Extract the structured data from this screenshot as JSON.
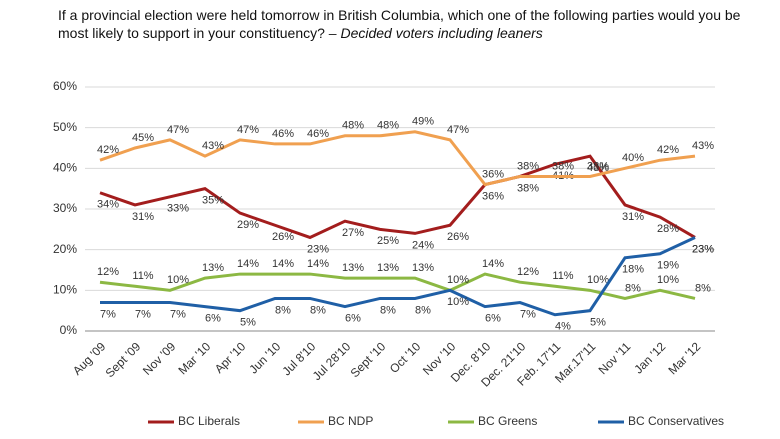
{
  "chart_data": {
    "type": "line",
    "title": "If a provincial election were held tomorrow in British Columbia, which one of the following parties would you be most likely to support in your constituency?",
    "subtitle": "– Decided voters including leaners",
    "categories": [
      "Aug '09",
      "Sept '09",
      "Nov '09",
      "Mar '10",
      "Apr '10",
      "Jun '10",
      "Jul 8'10",
      "Jul 28'10",
      "Sept '10",
      "Oct '10",
      "Nov '10",
      "Dec. 8'10",
      "Dec. 21'10",
      "Feb. 17'11",
      "Mar.17'11",
      "Nov '11",
      "Jan '12",
      "Mar '12"
    ],
    "series": [
      {
        "name": "BC Liberals",
        "color": "#a31d1d",
        "values": [
          34,
          31,
          33,
          35,
          29,
          26,
          23,
          27,
          25,
          24,
          26,
          36,
          38,
          41,
          43,
          31,
          28,
          23
        ],
        "value_labels": [
          "34%",
          "31%",
          "33%",
          "35%",
          "29%",
          "26%",
          "23%",
          "27%",
          "25%",
          "24%",
          "26%",
          "36%",
          "38%",
          "41%",
          "43%",
          "31%",
          "28%",
          "23%"
        ]
      },
      {
        "name": "BC NDP",
        "color": "#f0a050",
        "values": [
          42,
          45,
          47,
          43,
          47,
          46,
          46,
          48,
          48,
          49,
          47,
          36,
          38,
          38,
          38,
          40,
          42,
          43
        ],
        "value_labels": [
          "42%",
          "45%",
          "47%",
          "43%",
          "47%",
          "46%",
          "46%",
          "48%",
          "48%",
          "49%",
          "47%",
          "36%",
          "38%",
          "38%",
          "38%",
          "40%",
          "42%",
          "43%"
        ]
      },
      {
        "name": "BC Greens",
        "color": "#8cb843",
        "values": [
          12,
          11,
          10,
          13,
          14,
          14,
          14,
          13,
          13,
          13,
          10,
          14,
          12,
          11,
          10,
          8,
          10,
          8
        ],
        "value_labels": [
          "12%",
          "11%",
          "10%",
          "13%",
          "14%",
          "14%",
          "14%",
          "13%",
          "13%",
          "13%",
          "10%",
          "14%",
          "12%",
          "11%",
          "10%",
          "8%",
          "10%",
          "8%"
        ]
      },
      {
        "name": "BC Conservatives",
        "color": "#1f5fa6",
        "values": [
          7,
          7,
          7,
          6,
          5,
          8,
          8,
          6,
          8,
          8,
          10,
          6,
          7,
          4,
          5,
          18,
          19,
          23
        ],
        "value_labels": [
          "7%",
          "7%",
          "7%",
          "6%",
          "5%",
          "8%",
          "8%",
          "6%",
          "8%",
          "8%",
          "10%",
          "6%",
          "7%",
          "4%",
          "5%",
          "18%",
          "19%",
          "23%"
        ]
      }
    ],
    "ylim": [
      0,
      60
    ],
    "yticks": [
      {
        "value": 0,
        "label": "0%"
      },
      {
        "value": 10,
        "label": "10%"
      },
      {
        "value": 20,
        "label": "20%"
      },
      {
        "value": 30,
        "label": "30%"
      },
      {
        "value": 40,
        "label": "40%"
      },
      {
        "value": 50,
        "label": "50%"
      },
      {
        "value": 60,
        "label": "60%"
      }
    ],
    "grid": true,
    "legend": "bottom"
  }
}
